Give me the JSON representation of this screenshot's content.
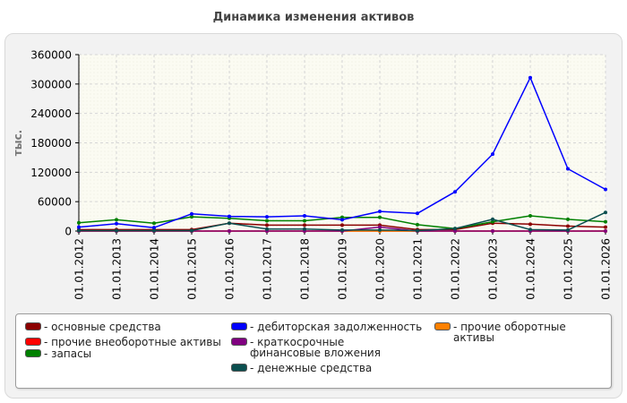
{
  "chart_data": {
    "type": "line",
    "title": "Динамика изменения активов",
    "ylabel": "тыс.",
    "xlabel": "",
    "ylim": [
      0,
      360000
    ],
    "yticks": [
      "0",
      "60000",
      "120000",
      "180000",
      "240000",
      "300000",
      "360000"
    ],
    "categories": [
      "01.01.2012",
      "01.01.2013",
      "01.01.2014",
      "01.01.2015",
      "01.01.2016",
      "01.01.2017",
      "01.01.2018",
      "01.01.2019",
      "01.01.2020",
      "01.01.2021",
      "01.01.2022",
      "01.01.2023",
      "01.01.2024",
      "01.01.2025",
      "01.01.2026"
    ],
    "grid": true,
    "legend_position": "bottom",
    "series": [
      {
        "name": "- основные средства",
        "color": "#8b0000",
        "values": [
          3000,
          3000,
          3000,
          3000,
          16000,
          12000,
          12000,
          12000,
          12000,
          3000,
          3000,
          16000,
          14000,
          10000,
          8000
        ]
      },
      {
        "name": "- прочие внеоборотные активы",
        "color": "#ff0000",
        "values": [
          0,
          0,
          0,
          0,
          0,
          0,
          0,
          0,
          0,
          0,
          0,
          0,
          0,
          0,
          0
        ]
      },
      {
        "name": "- запасы",
        "color": "#008000",
        "values": [
          17000,
          23000,
          16000,
          29000,
          26000,
          21000,
          21000,
          28000,
          28000,
          13000,
          5000,
          19000,
          31000,
          24000,
          19000
        ]
      },
      {
        "name": "- дебиторская задолженность",
        "color": "#0000ff",
        "values": [
          8000,
          15000,
          7000,
          35000,
          30000,
          29000,
          31000,
          23000,
          40000,
          36000,
          80000,
          157000,
          313000,
          127000,
          85000
        ]
      },
      {
        "name": "- краткосрочные финансовые вложения",
        "color": "#800080",
        "values": [
          0,
          0,
          0,
          0,
          0,
          0,
          0,
          0,
          8000,
          0,
          0,
          0,
          0,
          0,
          0
        ]
      },
      {
        "name": "- денежные средства",
        "color": "#0b4f4f",
        "values": [
          1000,
          1000,
          1000,
          1000,
          16000,
          4000,
          4000,
          2000,
          2000,
          1000,
          5000,
          24000,
          3000,
          2000,
          38000
        ]
      },
      {
        "name": "- прочие оборотные активы",
        "color": "#ff8000",
        "values": [
          0,
          0,
          0,
          0,
          0,
          0,
          0,
          0,
          0,
          0,
          0,
          0,
          0,
          0,
          0
        ]
      }
    ]
  }
}
